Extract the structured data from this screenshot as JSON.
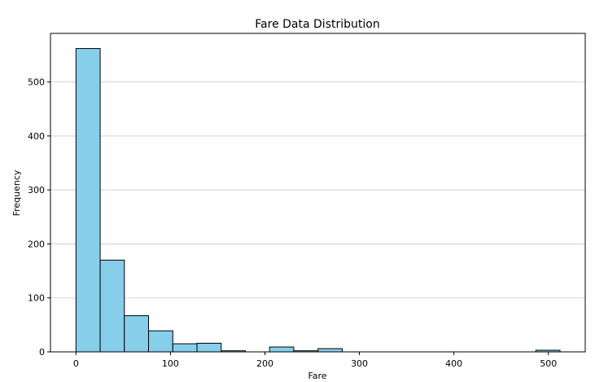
{
  "chart_data": {
    "type": "bar",
    "title": "Fare Data Distribution",
    "xlabel": "Fare",
    "ylabel": "Frequency",
    "xlim": [
      -27,
      539
    ],
    "ylim": [
      0,
      590
    ],
    "x_ticks": [
      0,
      100,
      200,
      300,
      400,
      500
    ],
    "y_ticks": [
      0,
      100,
      200,
      300,
      400,
      500
    ],
    "grid": {
      "y": true,
      "x": false
    },
    "bin_width": 25.6,
    "bins": [
      {
        "start": 0.0,
        "end": 25.6,
        "count": 562
      },
      {
        "start": 25.6,
        "end": 51.2,
        "count": 170
      },
      {
        "start": 51.2,
        "end": 76.8,
        "count": 67
      },
      {
        "start": 76.8,
        "end": 102.5,
        "count": 39
      },
      {
        "start": 102.5,
        "end": 128.1,
        "count": 15
      },
      {
        "start": 128.1,
        "end": 153.7,
        "count": 16
      },
      {
        "start": 153.7,
        "end": 179.3,
        "count": 2
      },
      {
        "start": 179.3,
        "end": 204.9,
        "count": 0
      },
      {
        "start": 204.9,
        "end": 230.5,
        "count": 9
      },
      {
        "start": 230.5,
        "end": 256.2,
        "count": 2
      },
      {
        "start": 256.2,
        "end": 281.8,
        "count": 6
      },
      {
        "start": 281.8,
        "end": 307.4,
        "count": 0
      },
      {
        "start": 307.4,
        "end": 333.0,
        "count": 0
      },
      {
        "start": 333.0,
        "end": 358.6,
        "count": 0
      },
      {
        "start": 358.6,
        "end": 384.2,
        "count": 0
      },
      {
        "start": 384.2,
        "end": 409.9,
        "count": 0
      },
      {
        "start": 409.9,
        "end": 435.5,
        "count": 0
      },
      {
        "start": 435.5,
        "end": 461.1,
        "count": 0
      },
      {
        "start": 461.1,
        "end": 486.7,
        "count": 0
      },
      {
        "start": 486.7,
        "end": 512.3,
        "count": 3
      }
    ],
    "colors": {
      "bar_fill": "#87ceeb",
      "bar_edge": "#000000",
      "grid": "#cccccc",
      "axes": "#000000"
    }
  }
}
